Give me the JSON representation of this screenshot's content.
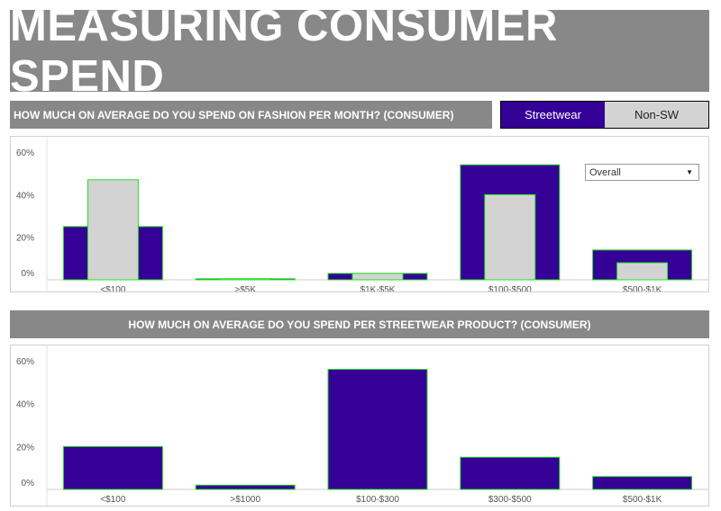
{
  "title": "MEASURING CONSUMER SPEND",
  "section1": {
    "header": "HOW MUCH ON AVERAGE DO YOU SPEND ON FASHION PER MONTH? (CONSUMER)"
  },
  "toggle": {
    "options": [
      "Streetwear",
      "Non-SW"
    ],
    "selected": "Streetwear"
  },
  "dropdown": {
    "value": "Overall"
  },
  "section2": {
    "header": "HOW MUCH ON AVERAGE DO YOU SPEND PER STREETWEAR PRODUCT? (CONSUMER)"
  },
  "colors": {
    "banner": "#888888",
    "primary_bar": "#340096",
    "secondary_bar": "#d3d3d3",
    "bar_outline": "#22dd22"
  },
  "chart_data": [
    {
      "type": "bar",
      "categories": [
        "<$100",
        ">$5K",
        "$1K-$5K",
        "$100-$500",
        "$500-$1K"
      ],
      "series": [
        {
          "name": "Streetwear",
          "values": [
            25,
            0.5,
            3,
            54,
            14
          ]
        },
        {
          "name": "Non-SW",
          "values": [
            47,
            0.5,
            3,
            40,
            8
          ]
        }
      ],
      "yticks": [
        "0%",
        "20%",
        "40%",
        "60%"
      ],
      "ylim": [
        0,
        60
      ],
      "grid": false
    },
    {
      "type": "bar",
      "categories": [
        "<$100",
        ">$1000",
        "$100-$300",
        "$300-$500",
        "$500-$1K"
      ],
      "series": [
        {
          "name": "Streetwear",
          "values": [
            20,
            2,
            56,
            15,
            6
          ]
        }
      ],
      "yticks": [
        "0%",
        "20%",
        "40%",
        "60%"
      ],
      "ylim": [
        0,
        60
      ],
      "grid": false
    }
  ]
}
